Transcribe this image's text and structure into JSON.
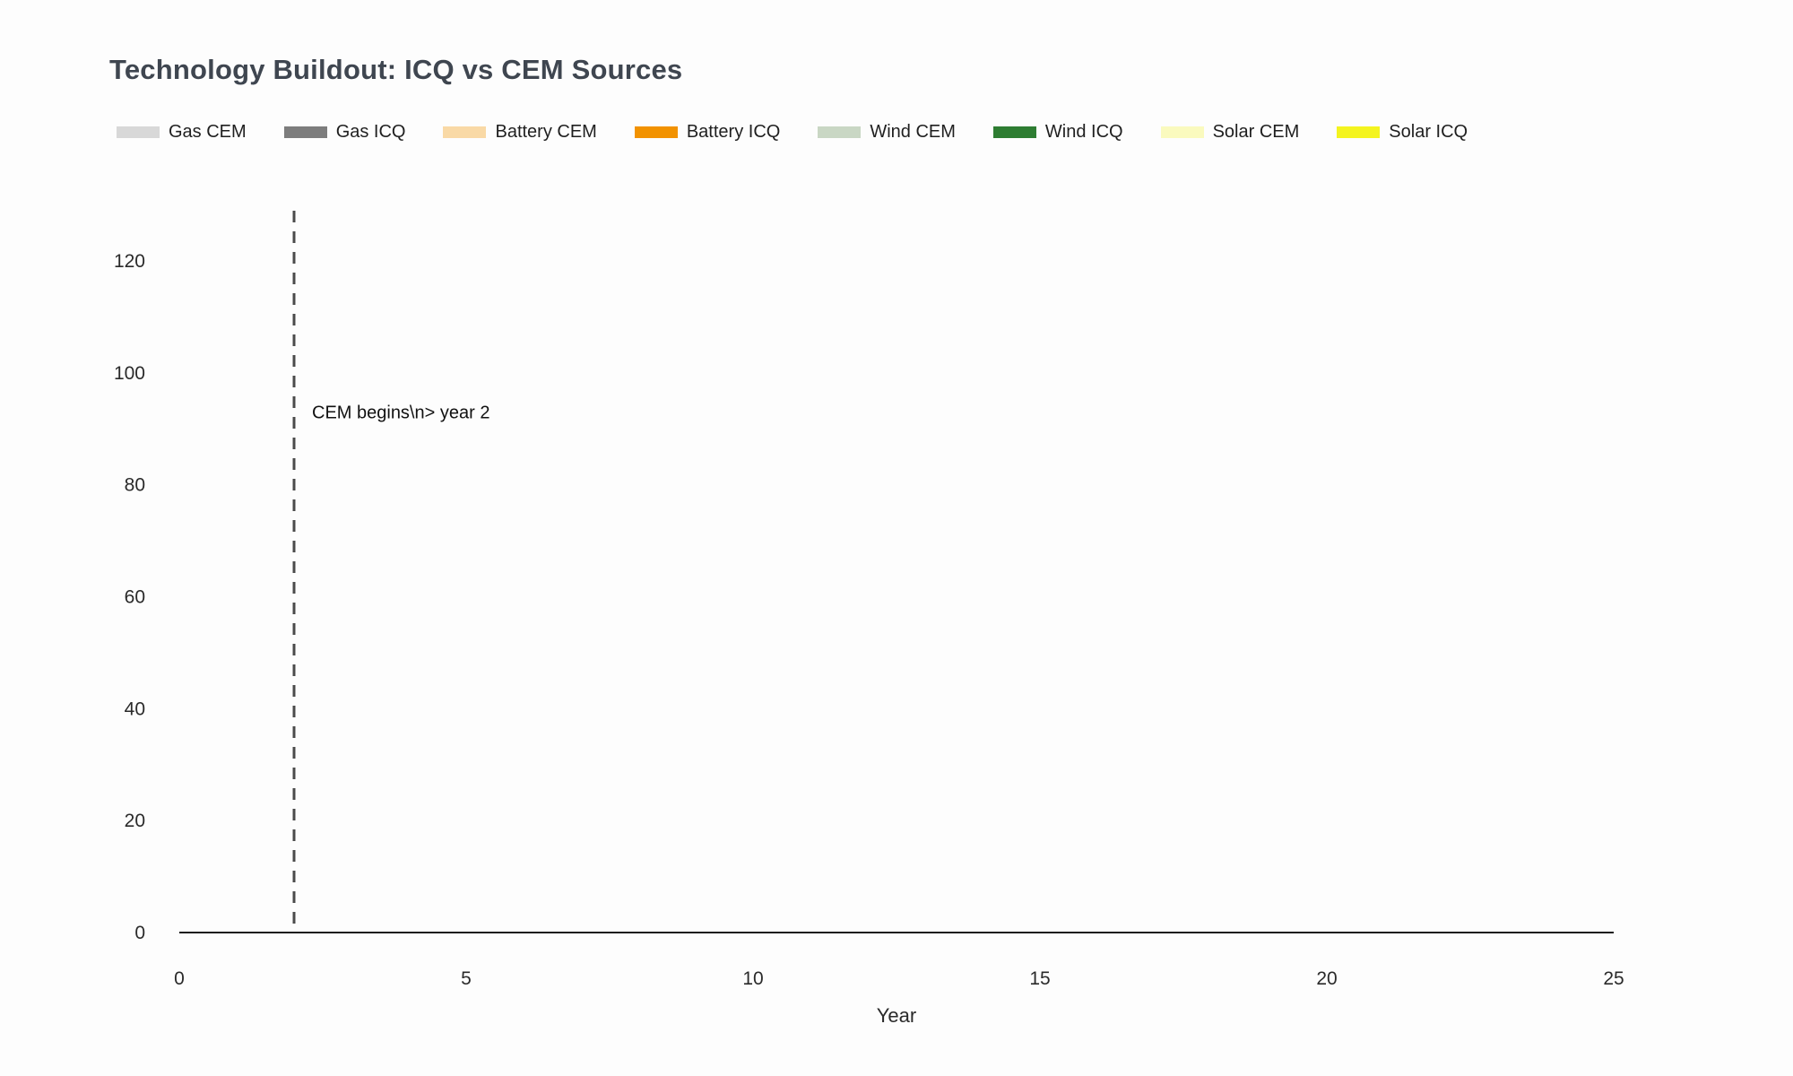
{
  "title": "Technology Buildout: ICQ vs CEM Sources",
  "legend": [
    {
      "label": "Gas CEM",
      "color": "#d8d8d8"
    },
    {
      "label": "Gas ICQ",
      "color": "#7d7d7d"
    },
    {
      "label": "Battery CEM",
      "color": "#f9d9a6"
    },
    {
      "label": "Battery ICQ",
      "color": "#f29200"
    },
    {
      "label": "Wind CEM",
      "color": "#c9d7c4"
    },
    {
      "label": "Wind ICQ",
      "color": "#2e7d32"
    },
    {
      "label": "Solar CEM",
      "color": "#fafabe"
    },
    {
      "label": "Solar ICQ",
      "color": "#f4f41f"
    }
  ],
  "chart_data": {
    "type": "bar",
    "title": "Technology Buildout: ICQ vs CEM Sources",
    "xlabel": "Year",
    "ylabel": "",
    "xlim": [
      0,
      25
    ],
    "ylim": [
      0,
      130
    ],
    "xticks": [
      "0",
      "5",
      "10",
      "15",
      "20",
      "25"
    ],
    "yticks": [
      "0",
      "20",
      "40",
      "60",
      "80",
      "100",
      "120"
    ],
    "grid": false,
    "legend_position": "top",
    "series": [
      {
        "name": "Gas CEM",
        "color": "#d8d8d8",
        "values": []
      },
      {
        "name": "Gas ICQ",
        "color": "#7d7d7d",
        "values": []
      },
      {
        "name": "Battery CEM",
        "color": "#f9d9a6",
        "values": []
      },
      {
        "name": "Battery ICQ",
        "color": "#f29200",
        "values": []
      },
      {
        "name": "Wind CEM",
        "color": "#c9d7c4",
        "values": []
      },
      {
        "name": "Wind ICQ",
        "color": "#2e7d32",
        "values": []
      },
      {
        "name": "Solar CEM",
        "color": "#fafabe",
        "values": []
      },
      {
        "name": "Solar ICQ",
        "color": "#f4f41f",
        "values": []
      }
    ],
    "vline": {
      "x": 2,
      "color": "#4a4a4a",
      "style": "dashed"
    },
    "annotation": {
      "text": "CEM begins\\n> year 2",
      "x": 2,
      "y": 93
    }
  }
}
